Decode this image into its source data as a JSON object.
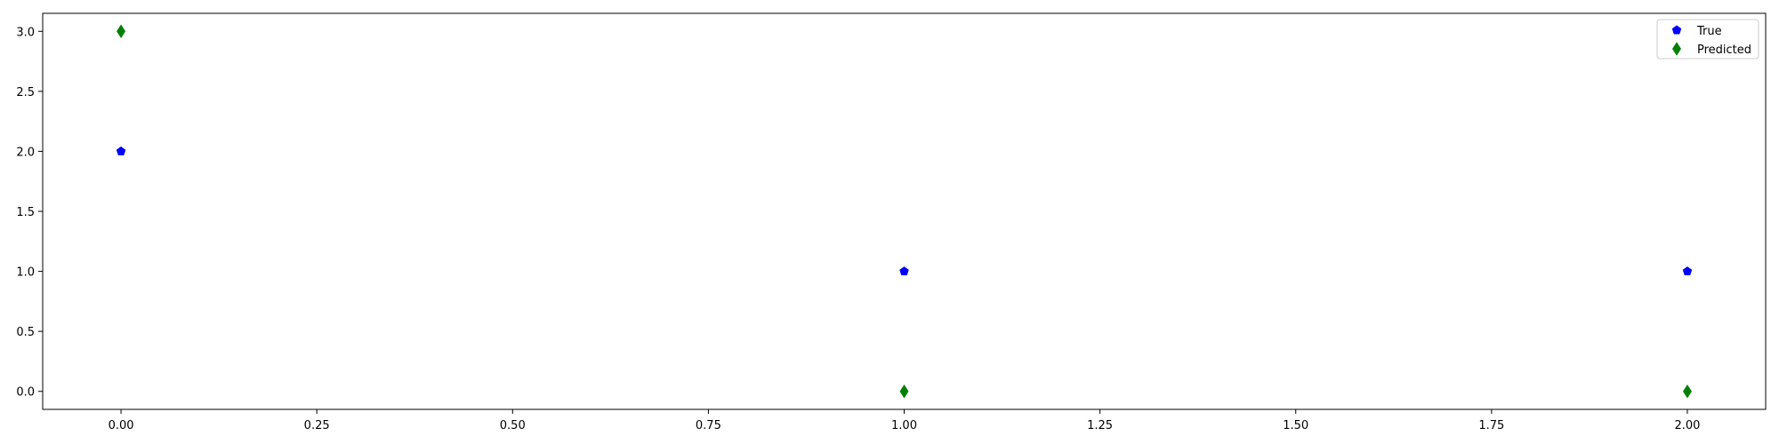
{
  "chart_data": {
    "type": "scatter",
    "title": "",
    "xlabel": "",
    "ylabel": "",
    "xlim": [
      -0.1,
      2.1
    ],
    "ylim": [
      -0.15,
      3.15
    ],
    "grid": false,
    "legend_position": "top-right",
    "x_ticks": [
      "0.00",
      "0.25",
      "0.50",
      "0.75",
      "1.00",
      "1.25",
      "1.50",
      "1.75",
      "2.00"
    ],
    "y_ticks": [
      "0.0",
      "0.5",
      "1.0",
      "1.5",
      "2.0",
      "2.5",
      "3.0"
    ],
    "series": [
      {
        "name": "True",
        "marker": "pentagon",
        "color": "#0000ff",
        "x": [
          0,
          1,
          2
        ],
        "y": [
          2,
          1,
          1
        ]
      },
      {
        "name": "Predicted",
        "marker": "thin-diamond",
        "color": "#008000",
        "x": [
          0,
          1,
          2
        ],
        "y": [
          3,
          0,
          0
        ]
      }
    ]
  }
}
